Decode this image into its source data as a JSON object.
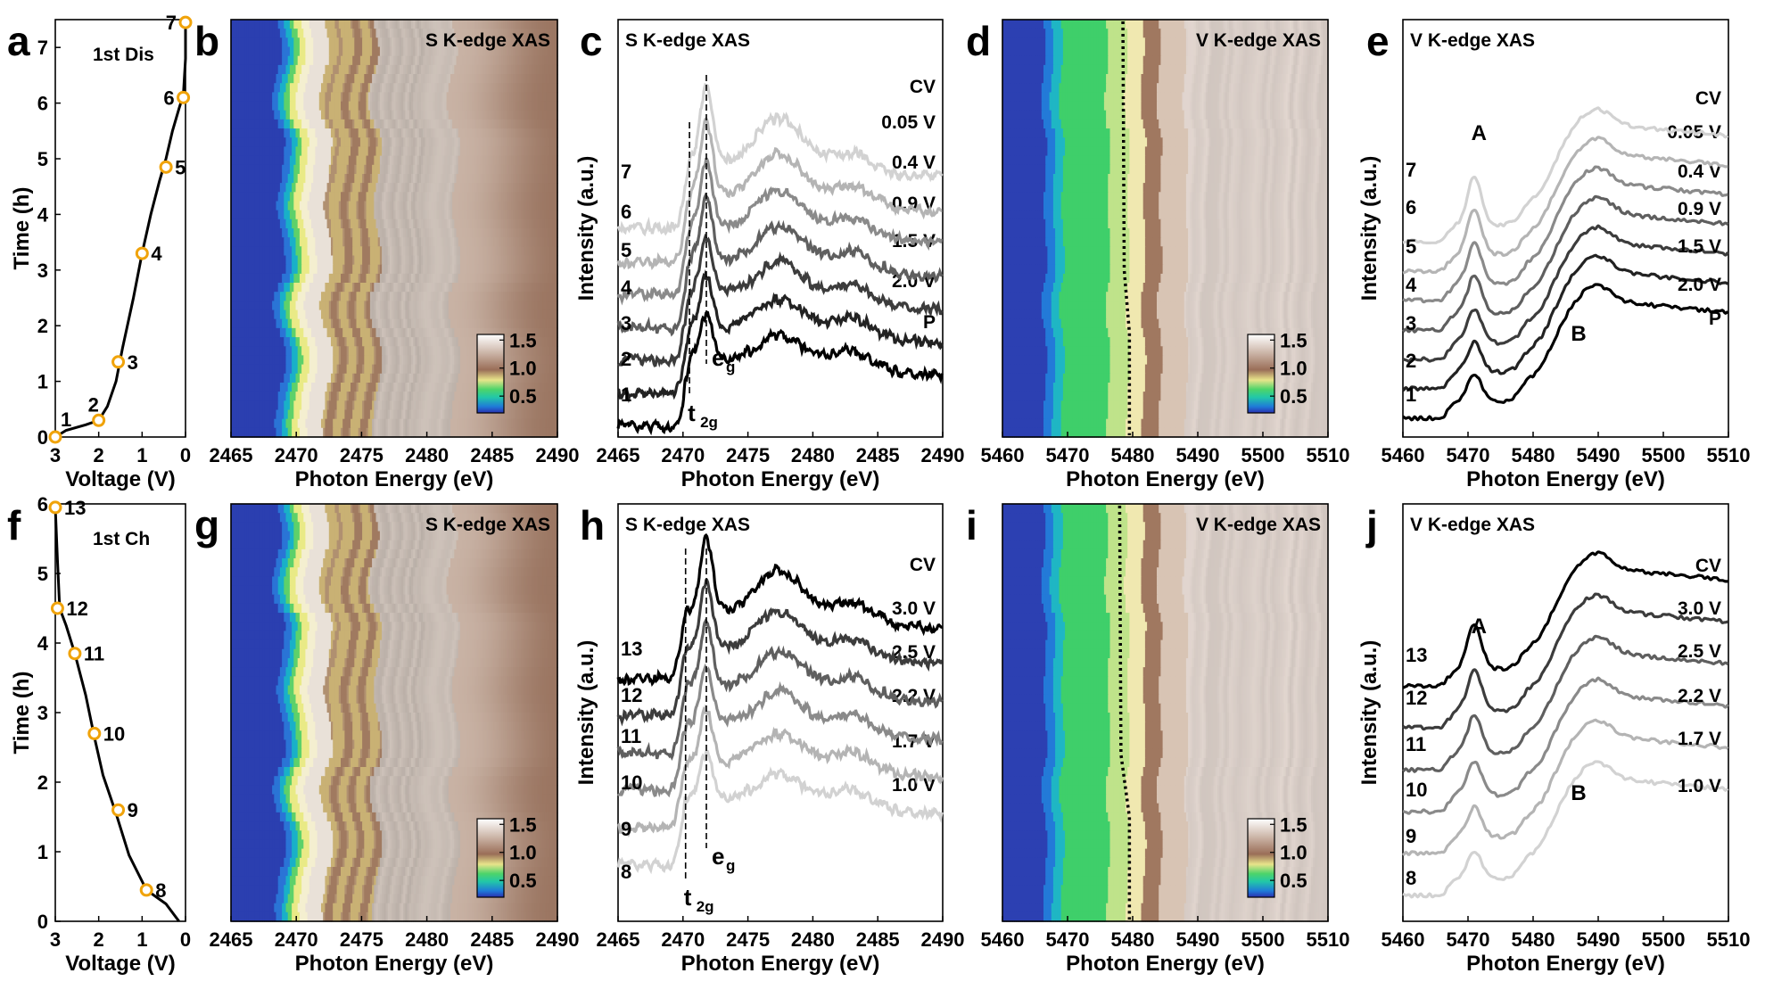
{
  "chart_data": [
    {
      "panel": "a",
      "type": "line",
      "title": "1st Dis",
      "xlabel": "Voltage (V)",
      "ylabel": "Time (h)",
      "xlim": [
        3,
        0
      ],
      "ylim": [
        0,
        7.5
      ],
      "xticks": [
        "3",
        "2",
        "1",
        "0"
      ],
      "yticks": [
        "0",
        "1",
        "2",
        "3",
        "4",
        "5",
        "6",
        "7"
      ],
      "curve": {
        "x": [
          3.0,
          2.75,
          2.3,
          2.0,
          1.8,
          1.6,
          1.45,
          1.2,
          1.0,
          0.8,
          0.6,
          0.45,
          0.3,
          0.15,
          0.05,
          0.0,
          0.0
        ],
        "y": [
          0.0,
          0.12,
          0.22,
          0.3,
          0.55,
          1.0,
          1.6,
          2.5,
          3.3,
          4.0,
          4.6,
          5.0,
          5.5,
          5.9,
          6.15,
          6.8,
          7.45
        ]
      },
      "markers": {
        "labels": [
          "1",
          "2",
          "3",
          "4",
          "5",
          "6",
          "7"
        ],
        "x": [
          3.0,
          2.0,
          1.55,
          1.0,
          0.45,
          0.05,
          0.0
        ],
        "y": [
          0.0,
          0.3,
          1.35,
          3.3,
          4.85,
          6.1,
          7.45
        ]
      }
    },
    {
      "panel": "b",
      "type": "heatmap",
      "title": "S K-edge XAS",
      "xlabel": "Photon Energy (eV)",
      "xlim": [
        2465,
        2490
      ],
      "xticks": [
        "2465",
        "2470",
        "2475",
        "2480",
        "2485",
        "2490"
      ],
      "colorbar": {
        "ticks": [
          "1.5",
          "1.0",
          "0.5"
        ],
        "range": [
          0.2,
          1.6
        ]
      },
      "features": {
        "edge_eV": 2469.8,
        "bright_eV": [
          2471,
          2472
        ],
        "yellow_band_eV": [
          2472.5,
          2476
        ],
        "white_band_eV": [
          2476,
          2482
        ]
      }
    },
    {
      "panel": "c",
      "type": "line",
      "title": "S K-edge XAS",
      "xlabel": "Photon Energy (eV)",
      "ylabel": "Intensity (a.u.)",
      "xlim": [
        2465,
        2490
      ],
      "xticks": [
        "2465",
        "2470",
        "2475",
        "2480",
        "2485",
        "2490"
      ],
      "numbers": [
        "1",
        "2",
        "3",
        "4",
        "5",
        "6",
        "7"
      ],
      "curve_labels": [
        "P",
        "2.0 V",
        "1.5 V",
        "0.9 V",
        "0.4 V",
        "0.05 V",
        "CV"
      ],
      "colors": [
        "#000000",
        "#222222",
        "#3c3c3c",
        "#5f5f5f",
        "#8a8a8a",
        "#b4b4b4",
        "#d2d2d2"
      ],
      "peaks": {
        "t2g_eV": 2470.5,
        "eg_eV": 2471.8
      },
      "annotations": {
        "t2g": "t",
        "t2g_sub": "2g",
        "eg": "e",
        "eg_sub": "g"
      }
    },
    {
      "panel": "d",
      "type": "heatmap",
      "title": "V K-edge XAS",
      "xlabel": "Photon Energy (eV)",
      "xlim": [
        5460,
        5510
      ],
      "xticks": [
        "5460",
        "5470",
        "5480",
        "5490",
        "5500",
        "5510"
      ],
      "colorbar": {
        "ticks": [
          "1.5",
          "1.0",
          "0.5"
        ],
        "range": [
          0.2,
          1.6
        ]
      },
      "features": {
        "edge_eV": 5467,
        "green_eV": [
          5470,
          5476
        ],
        "yellow_eV": [
          5476,
          5481
        ],
        "dotted_line_eV": [
          5478.5,
          5479.5
        ]
      }
    },
    {
      "panel": "e",
      "type": "line",
      "title": "V K-edge XAS",
      "xlabel": "Photon Energy (eV)",
      "ylabel": "Intensity (a.u.)",
      "xlim": [
        5460,
        5510
      ],
      "xticks": [
        "5460",
        "5470",
        "5480",
        "5490",
        "5500",
        "5510"
      ],
      "numbers": [
        "1",
        "2",
        "3",
        "4",
        "5",
        "6",
        "7"
      ],
      "curve_labels": [
        "P",
        "2.0 V",
        "1.5 V",
        "0.9 V",
        "0.4 V",
        "0.05 V",
        "CV"
      ],
      "colors": [
        "#000000",
        "#222222",
        "#3c3c3c",
        "#5f5f5f",
        "#8a8a8a",
        "#b4b4b4",
        "#d2d2d2"
      ],
      "annotations": {
        "A": "A",
        "B": "B"
      }
    },
    {
      "panel": "f",
      "type": "line",
      "title": "1st Ch",
      "xlabel": "Voltage (V)",
      "ylabel": "Time (h)",
      "xlim": [
        3,
        0
      ],
      "ylim": [
        0,
        6
      ],
      "xticks": [
        "3",
        "2",
        "1",
        "0"
      ],
      "yticks": [
        "0",
        "1",
        "2",
        "3",
        "4",
        "5",
        "6"
      ],
      "curve": {
        "x": [
          0.15,
          0.45,
          0.9,
          1.3,
          1.6,
          1.9,
          2.1,
          2.3,
          2.55,
          2.75,
          2.9,
          2.95,
          3.0
        ],
        "y": [
          0.0,
          0.25,
          0.45,
          0.95,
          1.55,
          2.1,
          2.65,
          3.25,
          3.85,
          4.25,
          4.5,
          5.2,
          5.95
        ]
      },
      "markers": {
        "labels": [
          "8",
          "9",
          "10",
          "11",
          "12",
          "13"
        ],
        "x": [
          0.9,
          1.55,
          2.1,
          2.55,
          2.95,
          3.0
        ],
        "y": [
          0.45,
          1.6,
          2.7,
          3.85,
          4.5,
          5.95
        ]
      }
    },
    {
      "panel": "g",
      "type": "heatmap",
      "title": "S K-edge XAS",
      "xlabel": "Photon Energy (eV)",
      "xlim": [
        2465,
        2490
      ],
      "xticks": [
        "2465",
        "2470",
        "2475",
        "2480",
        "2485",
        "2490"
      ],
      "colorbar": {
        "ticks": [
          "1.5",
          "1.0",
          "0.5"
        ],
        "range": [
          0.2,
          1.6
        ]
      },
      "features": {
        "edge_eV": 2469.8,
        "bright_eV": [
          2471,
          2472
        ],
        "yellow_band_eV": [
          2472.5,
          2476
        ],
        "white_band_eV": [
          2476,
          2482
        ]
      }
    },
    {
      "panel": "h",
      "type": "line",
      "title": "S K-edge XAS",
      "xlabel": "Photon Energy (eV)",
      "ylabel": "Intensity (a.u.)",
      "xlim": [
        2465,
        2490
      ],
      "xticks": [
        "2465",
        "2470",
        "2475",
        "2480",
        "2485",
        "2490"
      ],
      "numbers": [
        "8",
        "9",
        "10",
        "11",
        "12",
        "13"
      ],
      "curve_labels": [
        "1.0 V",
        "1.7 V",
        "2.2 V",
        "2.5 V",
        "3.0 V",
        "CV"
      ],
      "colors": [
        "#d2d2d2",
        "#b4b4b4",
        "#8a8a8a",
        "#5f5f5f",
        "#3c3c3c",
        "#000000"
      ],
      "peaks": {
        "t2g_eV": 2470.2,
        "eg_eV": 2471.8
      },
      "annotations": {
        "t2g": "t",
        "t2g_sub": "2g",
        "eg": "e",
        "eg_sub": "g"
      }
    },
    {
      "panel": "i",
      "type": "heatmap",
      "title": "V K-edge XAS",
      "xlabel": "Photon Energy (eV)",
      "xlim": [
        5460,
        5510
      ],
      "xticks": [
        "5460",
        "5470",
        "5480",
        "5490",
        "5500",
        "5510"
      ],
      "colorbar": {
        "ticks": [
          "1.5",
          "1.0",
          "0.5"
        ],
        "range": [
          0.2,
          1.6
        ]
      },
      "features": {
        "edge_eV": 5467,
        "green_eV": [
          5470,
          5476
        ],
        "yellow_eV": [
          5476,
          5481
        ],
        "dotted_line_eV": [
          5478,
          5479.5
        ]
      }
    },
    {
      "panel": "j",
      "type": "line",
      "title": "V K-edge XAS",
      "xlabel": "Photon Energy (eV)",
      "ylabel": "Intensity (a.u.)",
      "xlim": [
        5460,
        5510
      ],
      "xticks": [
        "5460",
        "5470",
        "5480",
        "5490",
        "5500",
        "5510"
      ],
      "numbers": [
        "8",
        "9",
        "10",
        "11",
        "12",
        "13"
      ],
      "curve_labels": [
        "1.0 V",
        "1.7 V",
        "2.2 V",
        "2.5 V",
        "3.0 V",
        "CV"
      ],
      "colors": [
        "#d2d2d2",
        "#b4b4b4",
        "#8a8a8a",
        "#5f5f5f",
        "#3c3c3c",
        "#000000"
      ],
      "annotations": {
        "A": "A",
        "B": "B"
      }
    }
  ]
}
